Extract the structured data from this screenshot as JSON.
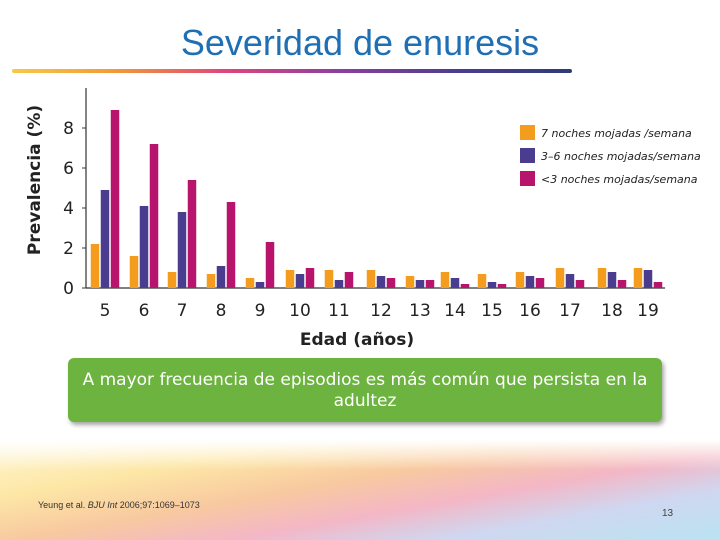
{
  "slide": {
    "title": "Severidad de enuresis",
    "callout": "A mayor frecuencia  de episodios es más común que persista en la adultez",
    "citation_prefix": "Yeung et al. ",
    "citation_journal": "BJU Int",
    "citation_suffix": " 2006;97:1069–1073",
    "page_number": "13"
  },
  "colors": {
    "series_7": "#f39c1e",
    "series_3_6": "#4a3d8f",
    "series_lt3": "#b8136d",
    "title": "#1f6fb5",
    "callout": "#6db33f"
  },
  "chart_data": {
    "type": "bar",
    "title": "",
    "xlabel": "Edad (años)",
    "ylabel": "Prevalencia (%)",
    "ylim": [
      0,
      10
    ],
    "yticks": [
      0,
      2,
      4,
      6,
      8
    ],
    "categories": [
      "5",
      "6",
      "7",
      "8",
      "9",
      "10",
      "11",
      "12",
      "13",
      "14",
      "15",
      "16",
      "17",
      "18",
      "19"
    ],
    "series": [
      {
        "name": "7 noches mojadas /semana",
        "color_key": "series_7",
        "values": [
          2.2,
          1.6,
          0.8,
          0.7,
          0.5,
          0.9,
          0.9,
          0.9,
          0.6,
          0.8,
          0.7,
          0.8,
          1.0,
          1.0,
          1.0
        ]
      },
      {
        "name": "3–6 noches mojadas/semana",
        "color_key": "series_3_6",
        "values": [
          4.9,
          4.1,
          3.8,
          1.1,
          0.3,
          0.7,
          0.4,
          0.6,
          0.4,
          0.5,
          0.3,
          0.6,
          0.7,
          0.8,
          0.9
        ]
      },
      {
        "name": "<3 noches mojadas/semana",
        "color_key": "series_lt3",
        "values": [
          8.9,
          7.2,
          5.4,
          4.3,
          2.3,
          1.0,
          0.8,
          0.5,
          0.4,
          0.2,
          0.2,
          0.5,
          0.4,
          0.4,
          0.3
        ]
      }
    ],
    "legend_position": "top-right",
    "grid": false
  }
}
